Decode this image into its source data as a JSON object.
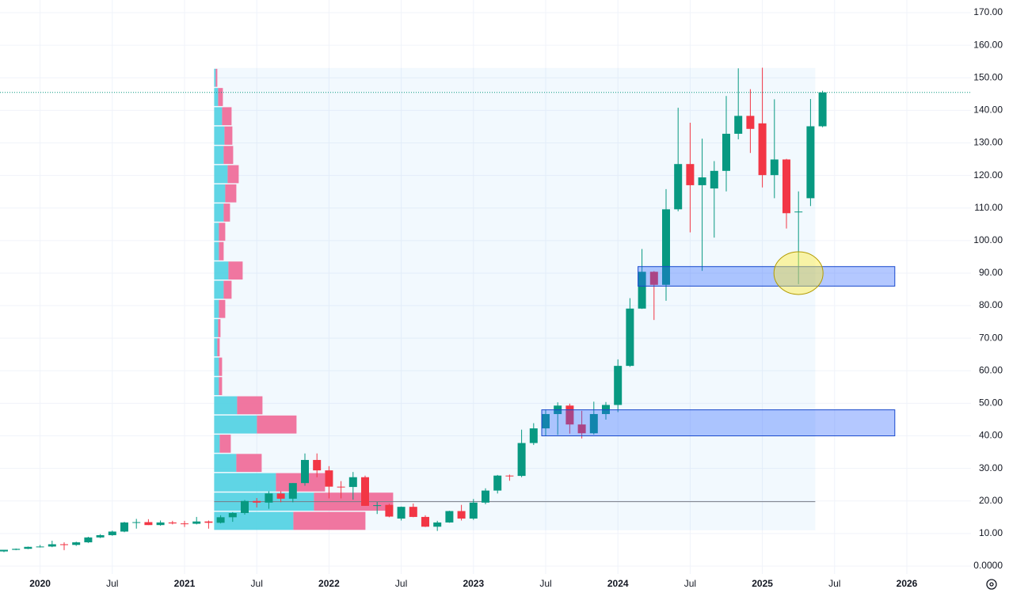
{
  "chart_data": {
    "type": "candlestick",
    "x": [
      "2019-10",
      "2019-11",
      "2019-12",
      "2020-01",
      "2020-02",
      "2020-03",
      "2020-04",
      "2020-05",
      "2020-06",
      "2020-07",
      "2020-08",
      "2020-09",
      "2020-10",
      "2020-11",
      "2020-12",
      "2021-01",
      "2021-02",
      "2021-03",
      "2021-04",
      "2021-05",
      "2021-06",
      "2021-07",
      "2021-08",
      "2021-09",
      "2021-10",
      "2021-11",
      "2021-12",
      "2022-01",
      "2022-02",
      "2022-03",
      "2022-04",
      "2022-05",
      "2022-06",
      "2022-07",
      "2022-08",
      "2022-09",
      "2022-10",
      "2022-11",
      "2022-12",
      "2023-01",
      "2023-02",
      "2023-03",
      "2023-04",
      "2023-05",
      "2023-06",
      "2023-07",
      "2023-08",
      "2023-09",
      "2023-10",
      "2023-11",
      "2023-12",
      "2024-01",
      "2024-02",
      "2024-03",
      "2024-04",
      "2024-05",
      "2024-06",
      "2024-07",
      "2024-08",
      "2024-09",
      "2024-10",
      "2024-11",
      "2024-12",
      "2025-01",
      "2025-02",
      "2025-03",
      "2025-04",
      "2025-05",
      "2025-06"
    ],
    "open": [
      4.5,
      5,
      5.3,
      5.9,
      6.0,
      6.7,
      6.5,
      7.3,
      8.8,
      9.5,
      10.6,
      13.4,
      13.5,
      12.6,
      13.4,
      13.1,
      13.0,
      13.7,
      13.3,
      15.0,
      16.3,
      20.0,
      19.5,
      22.3,
      20.7,
      25.5,
      32.6,
      29.4,
      24.4,
      24.3,
      27.3,
      18.5,
      18.8,
      14.6,
      18.2,
      15.1,
      12.1,
      13.4,
      16.9,
      14.6,
      19.5,
      23.2,
      27.8,
      27.7,
      37.8,
      42.3,
      46.7,
      49.3,
      43.5,
      40.8,
      46.7,
      49.5,
      61.5,
      79.1,
      90.4,
      86.4,
      109.6,
      123.5,
      117.0,
      116.0,
      121.4,
      132.8,
      138.3,
      136.0,
      120.1,
      124.9,
      108.7,
      113.0,
      135.1
    ],
    "high": [
      5,
      5.4,
      6,
      6.5,
      7.8,
      7.3,
      7.5,
      9.0,
      9.8,
      10.9,
      13.6,
      14.5,
      14.4,
      14.0,
      13.9,
      13.9,
      15.1,
      14.0,
      15.6,
      16.6,
      20.3,
      20.9,
      23.0,
      23.0,
      25.5,
      34.6,
      34.6,
      30.7,
      26.1,
      28.9,
      27.8,
      19.7,
      19.1,
      18.3,
      19.2,
      15.6,
      13.9,
      17.0,
      18.8,
      20.6,
      23.9,
      28.0,
      28.1,
      41.9,
      43.9,
      48.1,
      50.3,
      49.9,
      47.7,
      50.5,
      50.4,
      63.5,
      82.3,
      97.4,
      90.6,
      115.8,
      140.8,
      136.2,
      131.3,
      124.4,
      144.4,
      152.9,
      146.5,
      153.1,
      143.4,
      125.1,
      115.1,
      143.5,
      146.0
    ],
    "low": [
      4.3,
      4.9,
      5.2,
      5.7,
      5.8,
      4.9,
      6.2,
      7.1,
      8.6,
      9.3,
      10.4,
      11.5,
      12.6,
      12.4,
      12.8,
      12.0,
      12.8,
      11.5,
      13.1,
      13.6,
      15.8,
      18.0,
      17.6,
      19.6,
      19.6,
      24.7,
      27.3,
      20.8,
      20.8,
      20.4,
      18.5,
      16.0,
      15.0,
      14.0,
      15.0,
      12.0,
      10.8,
      13.3,
      14.0,
      14.2,
      19.0,
      22.3,
      26.2,
      27.3,
      37.2,
      40.0,
      40.3,
      40.7,
      39.2,
      40.4,
      45.0,
      47.3,
      61.2,
      79.0,
      75.6,
      81.5,
      109.0,
      102.5,
      90.7,
      100.9,
      115.1,
      131.1,
      126.9,
      116.3,
      113.0,
      103.7,
      86.6,
      110.6,
      134.8
    ],
    "close": [
      5,
      5.3,
      5.9,
      6.0,
      6.7,
      6.5,
      7.3,
      8.8,
      9.5,
      10.6,
      13.4,
      13.5,
      12.6,
      13.4,
      13.1,
      13.0,
      13.7,
      13.3,
      15.0,
      16.3,
      20.0,
      19.5,
      22.3,
      20.7,
      25.5,
      32.6,
      29.4,
      24.4,
      24.3,
      27.3,
      18.5,
      18.7,
      15.2,
      18.2,
      15.1,
      12.1,
      13.4,
      16.9,
      14.6,
      19.5,
      23.2,
      27.8,
      27.7,
      37.8,
      42.3,
      46.7,
      49.3,
      43.5,
      40.8,
      46.7,
      49.5,
      61.5,
      79.1,
      90.4,
      86.4,
      109.6,
      123.5,
      117.0,
      119.4,
      121.4,
      132.8,
      138.3,
      134.3,
      120.1,
      124.9,
      108.4,
      108.9,
      135.1,
      145.5
    ],
    "up_color": "#089981",
    "down_color": "#f23645",
    "ylim": [
      0,
      170
    ],
    "yticks": [
      {
        "value": 0,
        "label": "0.0000"
      },
      {
        "value": 10,
        "label": "10.00"
      },
      {
        "value": 20,
        "label": "20.00"
      },
      {
        "value": 30,
        "label": "30.00"
      },
      {
        "value": 40,
        "label": "40.00"
      },
      {
        "value": 50,
        "label": "50.00"
      },
      {
        "value": 60,
        "label": "60.00"
      },
      {
        "value": 70,
        "label": "70.00"
      },
      {
        "value": 80,
        "label": "80.00"
      },
      {
        "value": 90,
        "label": "90.00"
      },
      {
        "value": 100,
        "label": "100.00"
      },
      {
        "value": 110,
        "label": "110.00"
      },
      {
        "value": 120,
        "label": "120.00"
      },
      {
        "value": 130,
        "label": "130.00"
      },
      {
        "value": 140,
        "label": "140.00"
      },
      {
        "value": 150,
        "label": "150.00"
      },
      {
        "value": 160,
        "label": "160.00"
      },
      {
        "value": 170,
        "label": "170.00"
      }
    ],
    "xticks": [
      {
        "value": "2020-01",
        "label": "2020"
      },
      {
        "value": "2020-07",
        "label": "Jul"
      },
      {
        "value": "2021-01",
        "label": "2021"
      },
      {
        "value": "2021-07",
        "label": "Jul"
      },
      {
        "value": "2022-01",
        "label": "2022"
      },
      {
        "value": "2022-07",
        "label": "Jul"
      },
      {
        "value": "2023-01",
        "label": "2023"
      },
      {
        "value": "2023-07",
        "label": "Jul"
      },
      {
        "value": "2024-01",
        "label": "2024"
      },
      {
        "value": "2024-07",
        "label": "Jul"
      },
      {
        "value": "2025-01",
        "label": "2025"
      },
      {
        "value": "2025-07",
        "label": "Jul"
      },
      {
        "value": "2026-01",
        "label": "2026"
      }
    ],
    "grid": true,
    "volume_profile": {
      "start": "2021-03",
      "end": "2025-05",
      "bins": [
        11,
        16.9,
        22.8,
        28.8,
        34.7,
        40.6,
        46.5,
        52.4,
        58.3,
        64.3,
        70.2,
        76.1,
        82,
        87.9,
        93.8,
        99.8,
        105.7,
        111.6,
        117.5,
        123.4,
        129.3,
        135.3,
        141.2,
        147.1,
        153
      ],
      "up": [
        100,
        126,
        78,
        28,
        7,
        54,
        29,
        6,
        6,
        4,
        5,
        6,
        12,
        18,
        6,
        6,
        12,
        14,
        17,
        12,
        13,
        10,
        5,
        2
      ],
      "down": [
        91,
        100,
        62,
        32,
        14,
        50,
        32,
        4,
        4,
        3,
        3,
        8,
        10,
        18,
        6,
        8,
        8,
        14,
        14,
        12,
        10,
        12,
        6,
        2
      ],
      "up_color": "#56d3e4",
      "down_color": "#ef6f9b"
    },
    "reference_line": {
      "value": 19.8,
      "start": "2021-03",
      "end": "2025-05"
    },
    "zones": [
      {
        "low": 40,
        "high": 48,
        "start": "2023-07",
        "end": "2025-12"
      },
      {
        "low": 86,
        "high": 92,
        "start": "2024-03",
        "end": "2025-12"
      }
    ],
    "highlight": {
      "x": "2025-04",
      "price": 90
    }
  }
}
